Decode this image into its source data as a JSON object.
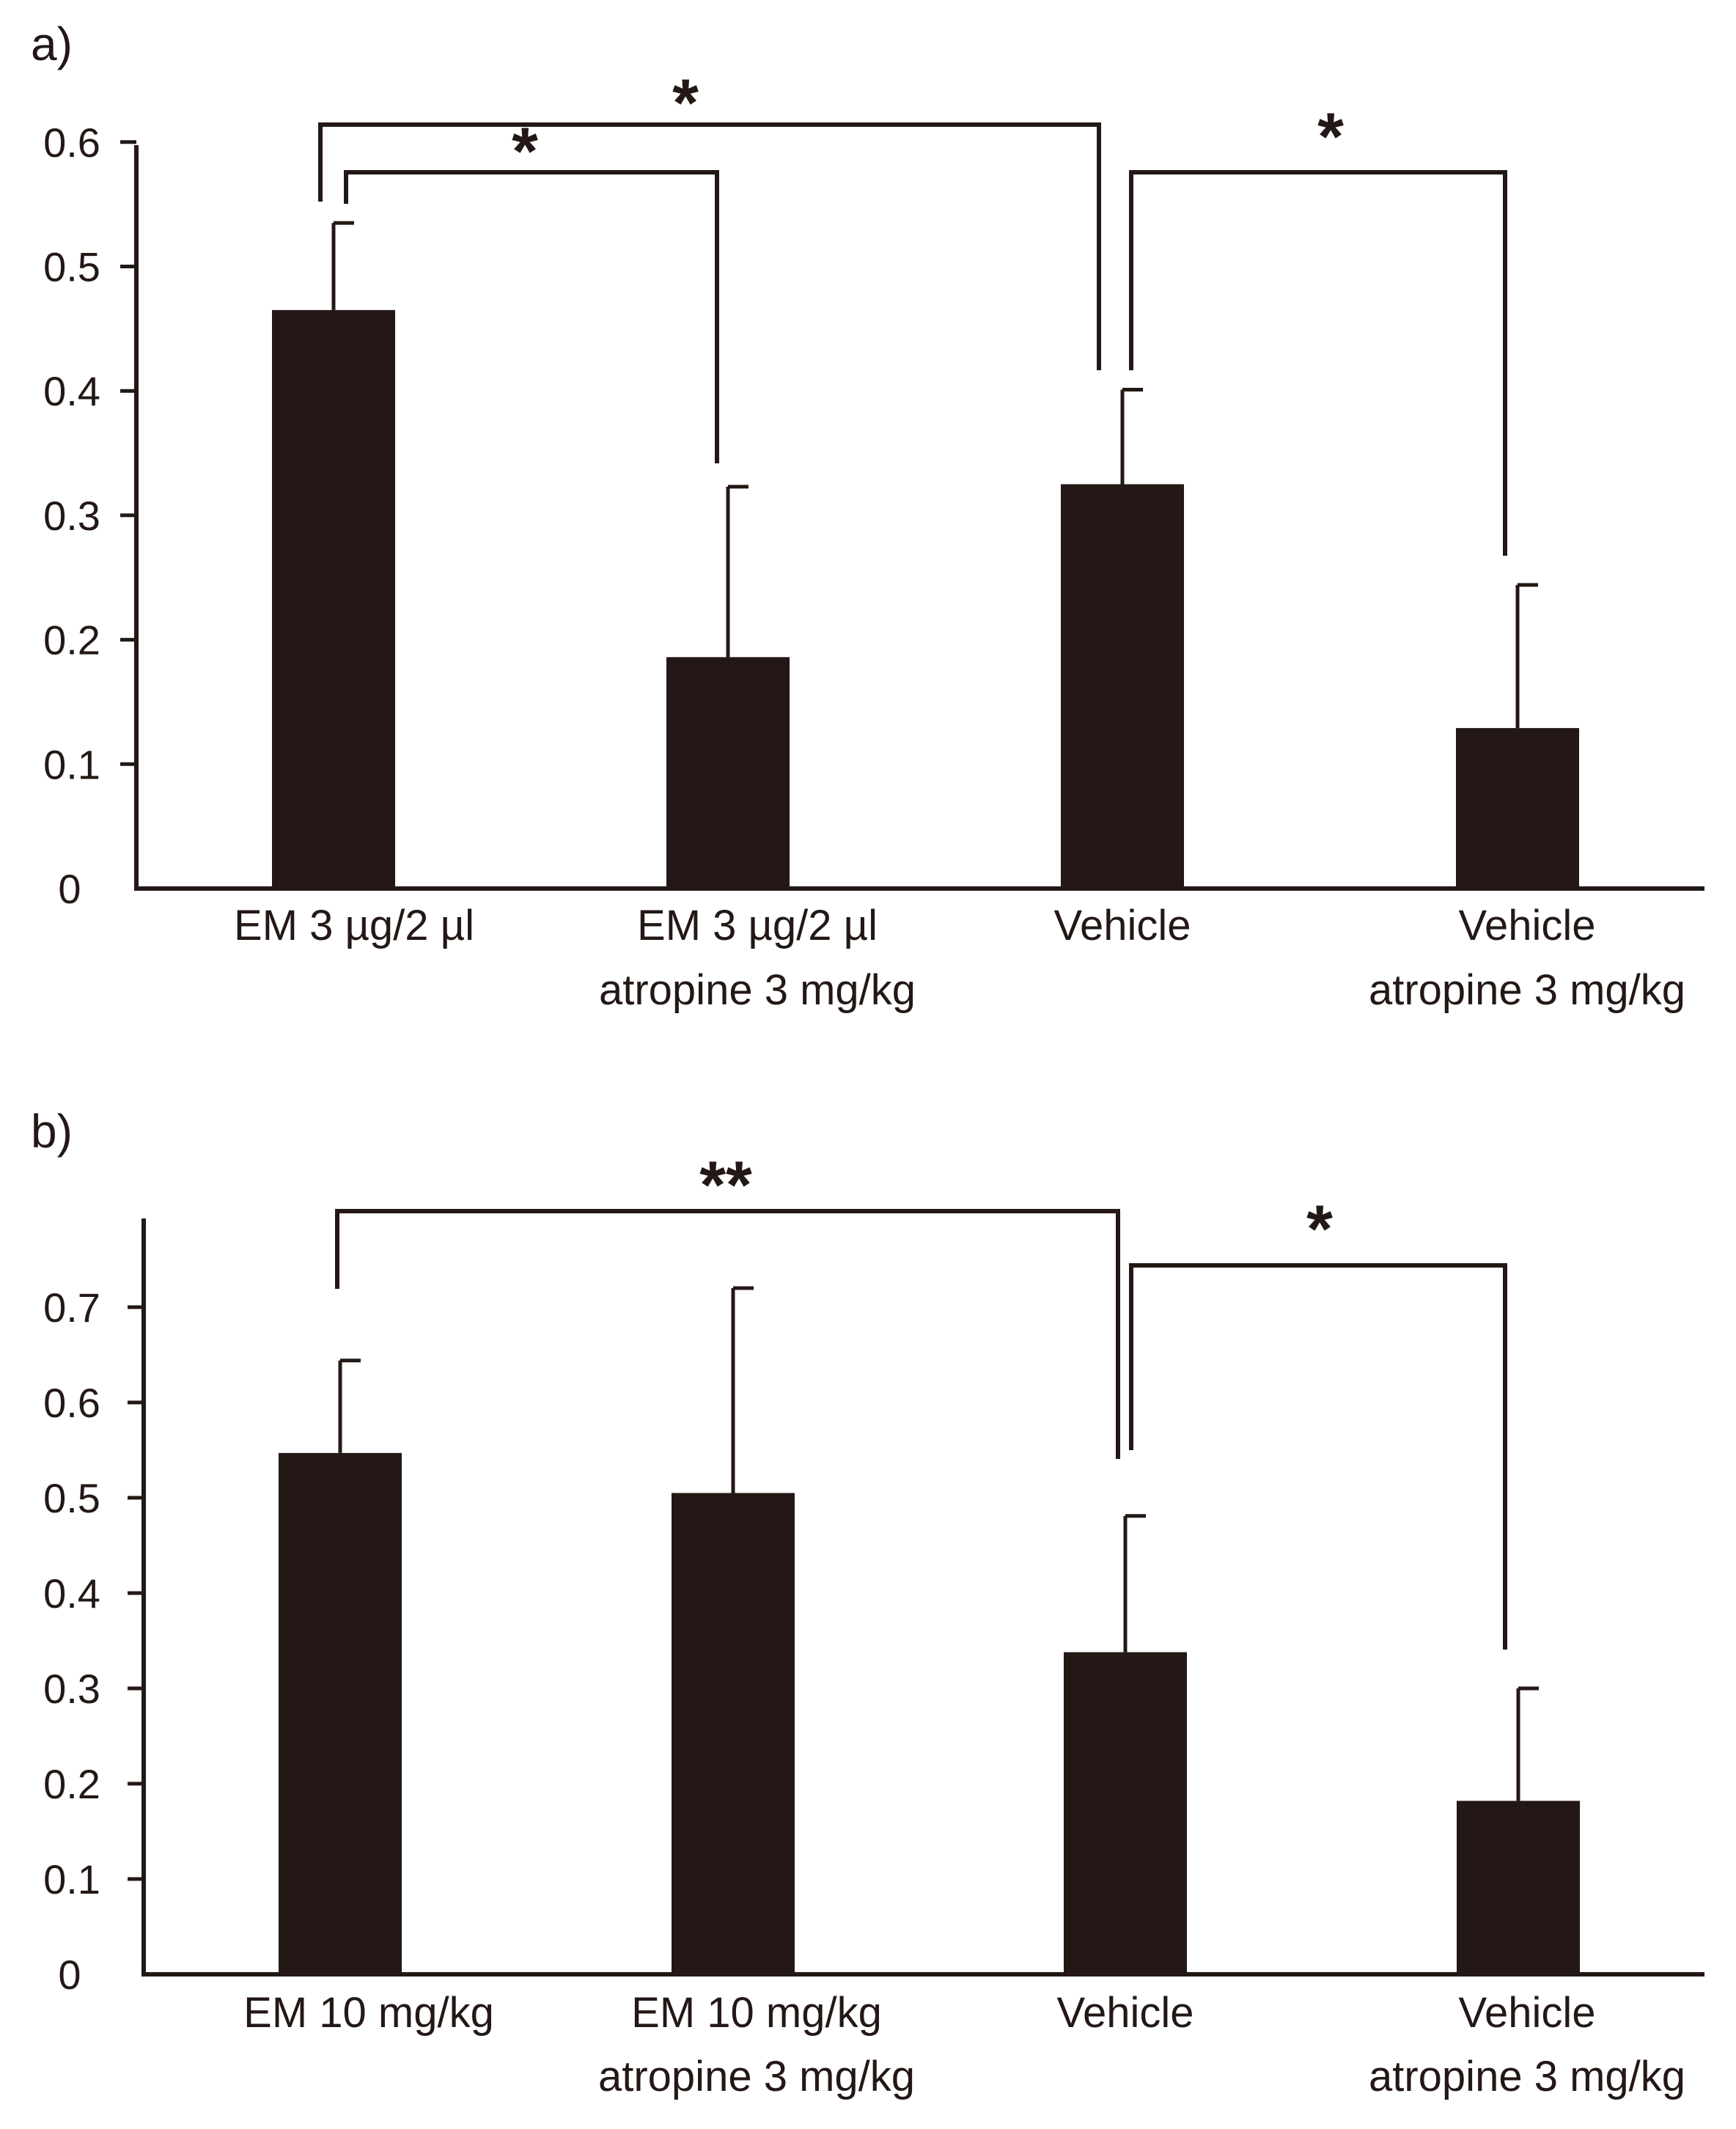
{
  "figure": {
    "panels": [
      "a)",
      "b)"
    ]
  },
  "chart_data": [
    {
      "type": "bar",
      "panel_label": "a)",
      "categories": [
        [
          "EM 3 µg/2 µl"
        ],
        [
          "EM 3 µg/2 µl",
          "atropine 3 mg/kg"
        ],
        [
          "Vehicle"
        ],
        [
          "Vehicle",
          "atropine 3 mg/kg"
        ]
      ],
      "values": [
        0.465,
        0.186,
        0.325,
        0.129
      ],
      "errors": [
        0.07,
        0.137,
        0.076,
        0.115
      ],
      "ylim": [
        0,
        0.6
      ],
      "yticks": [
        0,
        0.1,
        0.2,
        0.3,
        0.4,
        0.5,
        0.6
      ],
      "ytick_labels": [
        "0",
        "0.1",
        "0.2",
        "0.3",
        "0.4",
        "0.5",
        "0.6"
      ],
      "color": "#231815",
      "significance": [
        {
          "from": 0,
          "to": 2,
          "label": "*"
        },
        {
          "from": 0,
          "to": 1,
          "label": "*"
        },
        {
          "from": 2,
          "to": 3,
          "label": "*"
        }
      ]
    },
    {
      "type": "bar",
      "panel_label": "b)",
      "categories": [
        [
          "EM 10 mg/kg"
        ],
        [
          "EM 10 mg/kg",
          "atropine 3 mg/kg"
        ],
        [
          "Vehicle"
        ],
        [
          "Vehicle",
          "atropine 3 mg/kg"
        ]
      ],
      "values": [
        0.547,
        0.505,
        0.338,
        0.182
      ],
      "errors": [
        0.097,
        0.215,
        0.143,
        0.118
      ],
      "ylim": [
        0,
        0.79
      ],
      "yticks": [
        0,
        0.1,
        0.2,
        0.3,
        0.4,
        0.5,
        0.6,
        0.7
      ],
      "ytick_labels": [
        "0",
        "0.1",
        "0.2",
        "0.3",
        "0.4",
        "0.5",
        "0.6",
        "0.7"
      ],
      "color": "#231815",
      "significance": [
        {
          "from": 0,
          "to": 2,
          "label": "**"
        },
        {
          "from": 2,
          "to": 3,
          "label": "*"
        }
      ]
    }
  ]
}
